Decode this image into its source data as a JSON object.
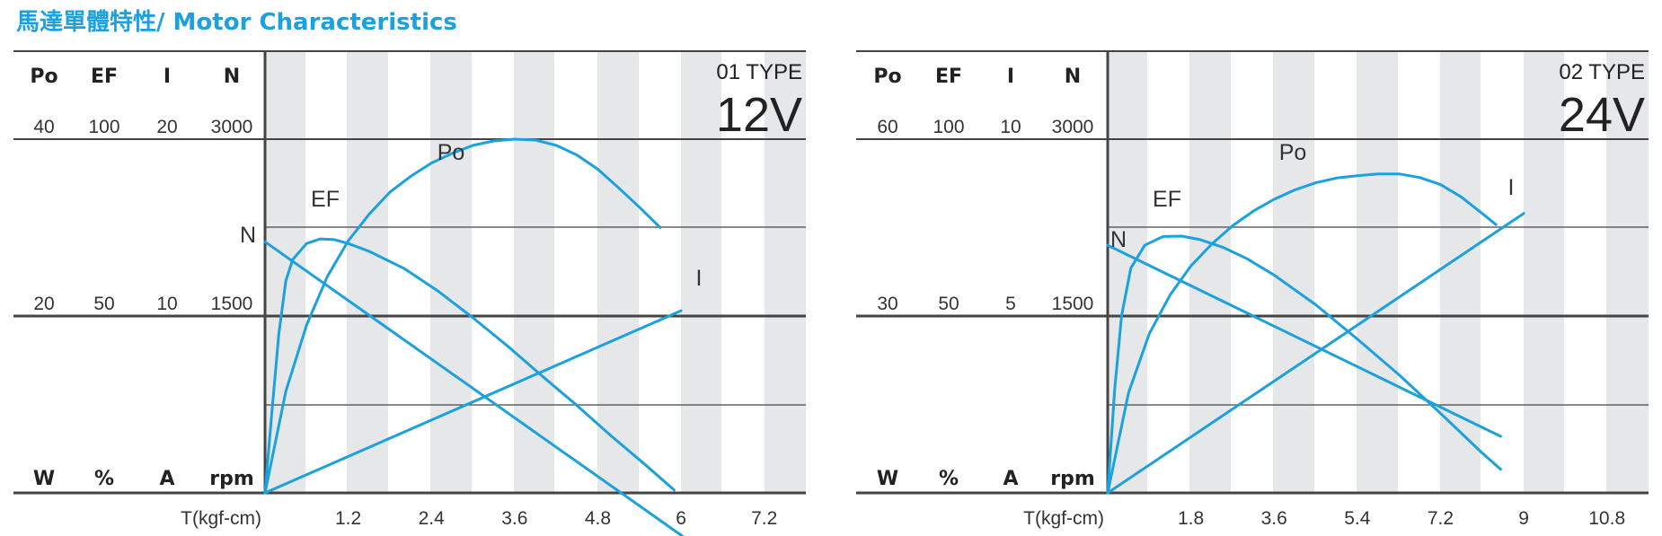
{
  "title": "馬達單體特性/ Motor Characteristics",
  "colors": {
    "curve": "#1ba1dd",
    "title": "#1ba1dd",
    "band": "#e6e7e9",
    "axis": "#444444",
    "text": "#222222"
  },
  "chart_data": [
    {
      "type": "line",
      "type_label": "01 TYPE",
      "voltage": "12V",
      "headers": [
        "Po",
        "EF",
        "I",
        "N"
      ],
      "top_values": [
        "40",
        "100",
        "20",
        "3000"
      ],
      "mid_values": [
        "20",
        "50",
        "10",
        "1500"
      ],
      "units": [
        "W",
        "%",
        "A",
        "rpm"
      ],
      "xlabel": "T(kgf-cm)",
      "x_ticks": [
        "1.2",
        "2.4",
        "3.6",
        "4.8",
        "6",
        "7.2"
      ],
      "xlim": [
        0,
        7.8
      ],
      "grid": "alternating vertical bands every 0.6",
      "series": [
        {
          "name": "Po",
          "axis": "Po",
          "ylim": [
            0,
            40
          ],
          "x": [
            0,
            0.3,
            0.6,
            0.9,
            1.2,
            1.5,
            1.8,
            2.1,
            2.4,
            2.7,
            3.0,
            3.3,
            3.6,
            3.9,
            4.2,
            4.5,
            4.8,
            5.1,
            5.4,
            5.7
          ],
          "y": [
            0,
            11.5,
            19,
            24.5,
            28.5,
            31.5,
            34,
            35.8,
            37.3,
            38.4,
            39.3,
            39.8,
            40,
            39.9,
            39.3,
            38.2,
            36.6,
            34.5,
            32.3,
            30
          ]
        },
        {
          "name": "EF",
          "axis": "EF",
          "ylim": [
            0,
            100
          ],
          "x": [
            0,
            0.1,
            0.2,
            0.3,
            0.4,
            0.6,
            0.8,
            1.0,
            1.2,
            1.5,
            2.0,
            2.5,
            3.0,
            3.5,
            4.0,
            4.5,
            5.0,
            5.5,
            5.9
          ],
          "y": [
            0,
            23,
            45,
            60,
            66,
            70.5,
            71.8,
            71.6,
            70.5,
            68.3,
            63.5,
            57,
            49.5,
            41.5,
            33,
            24.7,
            16,
            7.7,
            0.8
          ]
        },
        {
          "name": "I",
          "axis": "I",
          "ylim": [
            0,
            20
          ],
          "x": [
            0,
            6
          ],
          "y": [
            0,
            10.3
          ]
        },
        {
          "name": "N",
          "axis": "N",
          "ylim": [
            0,
            3000
          ],
          "x": [
            0,
            6.1
          ],
          "y": [
            2130,
            -400
          ]
        }
      ]
    },
    {
      "type": "line",
      "type_label": "02 TYPE",
      "voltage": "24V",
      "headers": [
        "Po",
        "EF",
        "I",
        "N"
      ],
      "top_values": [
        "60",
        "100",
        "10",
        "3000"
      ],
      "mid_values": [
        "30",
        "50",
        "5",
        "1500"
      ],
      "units": [
        "W",
        "%",
        "A",
        "rpm"
      ],
      "xlabel": "T(kgf-cm)",
      "x_ticks": [
        "1.8",
        "3.6",
        "5.4",
        "7.2",
        "9",
        "10.8"
      ],
      "xlim": [
        0,
        11.7
      ],
      "grid": "alternating vertical bands every 0.9",
      "series": [
        {
          "name": "Po",
          "axis": "Po",
          "ylim": [
            0,
            60
          ],
          "x": [
            0,
            0.45,
            0.9,
            1.35,
            1.8,
            2.25,
            2.7,
            3.15,
            3.6,
            4.05,
            4.5,
            4.95,
            5.4,
            5.85,
            6.3,
            6.75,
            7.2,
            7.65,
            8.1,
            8.4
          ],
          "y": [
            0,
            17,
            27,
            33.6,
            38.5,
            42.2,
            45.3,
            47.8,
            49.8,
            51.4,
            52.6,
            53.4,
            53.8,
            54.1,
            54.1,
            53.5,
            52.3,
            50.2,
            47.4,
            45.5
          ]
        },
        {
          "name": "EF",
          "axis": "EF",
          "ylim": [
            0,
            100
          ],
          "x": [
            0,
            0.15,
            0.3,
            0.5,
            0.8,
            1.2,
            1.6,
            2.0,
            2.5,
            3.0,
            3.6,
            4.5,
            5.4,
            6.3,
            7.2,
            8.1,
            8.5
          ],
          "y": [
            0,
            29,
            50,
            63.5,
            70,
            72.5,
            72.6,
            71.6,
            69.4,
            66.3,
            61.6,
            53.2,
            43.5,
            33.4,
            22.5,
            11.3,
            6.7
          ]
        },
        {
          "name": "I",
          "axis": "I",
          "ylim": [
            0,
            10
          ],
          "x": [
            0,
            9
          ],
          "y": [
            0,
            7.9
          ]
        },
        {
          "name": "N",
          "axis": "N",
          "ylim": [
            0,
            3000
          ],
          "x": [
            0,
            8.5
          ],
          "y": [
            2100,
            480
          ]
        }
      ]
    }
  ]
}
